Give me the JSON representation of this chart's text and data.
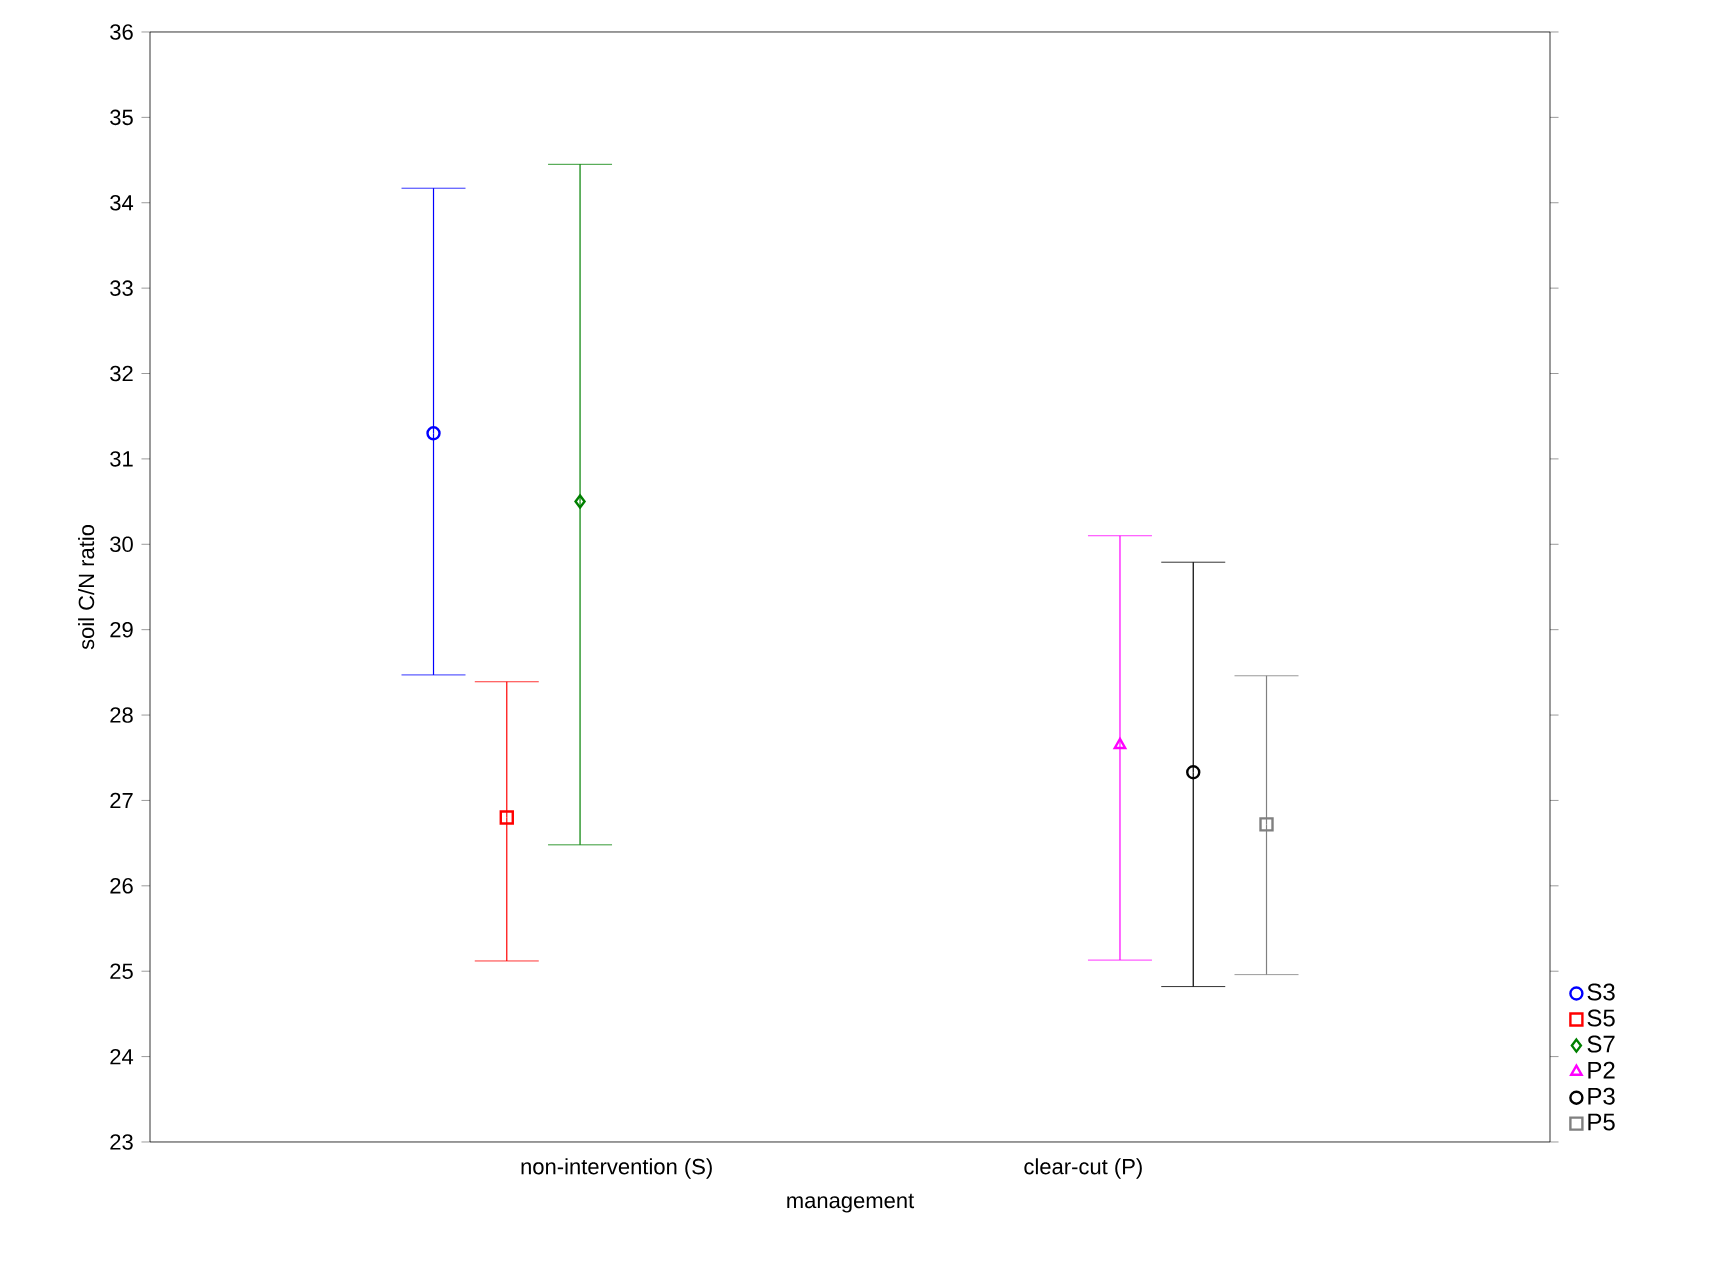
{
  "chart_data": {
    "type": "scatter",
    "xlabel": "management",
    "ylabel": "soil C/N ratio",
    "categories": [
      "non-intervention (S)",
      "clear-cut (P)"
    ],
    "ylim": [
      23,
      36
    ],
    "yticks": [
      23,
      24,
      25,
      26,
      27,
      28,
      29,
      30,
      31,
      32,
      33,
      34,
      35,
      36
    ],
    "legend": "bottom right",
    "series": [
      {
        "name": "S3",
        "color": "#0000ff",
        "marker": "circle",
        "values": [
          31.3,
          null
        ],
        "errors": [
          [
            28.47,
            34.17
          ],
          null
        ]
      },
      {
        "name": "S5",
        "color": "#ff0000",
        "marker": "square",
        "values": [
          26.8,
          null
        ],
        "errors": [
          [
            25.12,
            28.39
          ],
          null
        ]
      },
      {
        "name": "S7",
        "color": "#008000",
        "marker": "diamond",
        "values": [
          30.5,
          null
        ],
        "errors": [
          [
            26.48,
            34.45
          ],
          null
        ]
      },
      {
        "name": "P2",
        "color": "#ff00ff",
        "marker": "triangle",
        "values": [
          null,
          27.65
        ],
        "errors": [
          null,
          [
            25.13,
            30.1
          ]
        ]
      },
      {
        "name": "P3",
        "color": "#000000",
        "marker": "circle",
        "values": [
          null,
          27.33
        ],
        "errors": [
          null,
          [
            24.82,
            29.79
          ]
        ]
      },
      {
        "name": "P5",
        "color": "#808080",
        "marker": "square",
        "values": [
          null,
          26.72
        ],
        "errors": [
          null,
          [
            24.96,
            28.46
          ]
        ]
      }
    ]
  }
}
